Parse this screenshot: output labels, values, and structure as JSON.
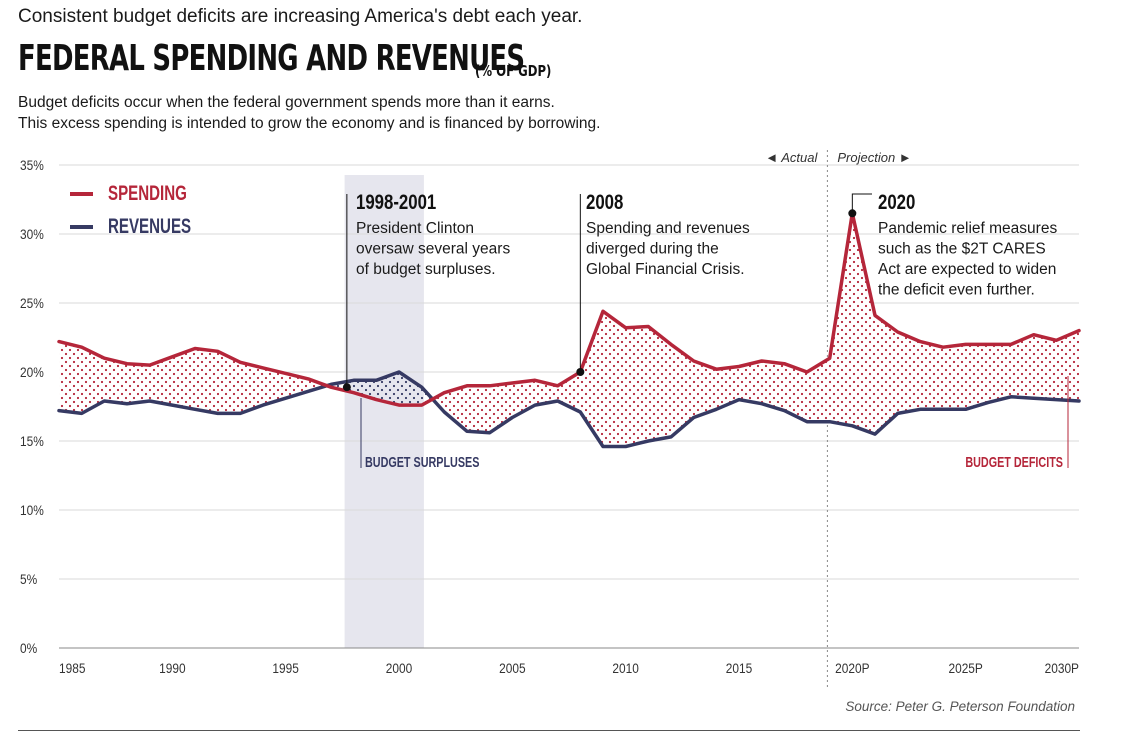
{
  "header": {
    "kicker": "Consistent budget deficits are increasing America's debt each year.",
    "title": "FEDERAL SPENDING AND REVENUES",
    "unit": "(% OF GDP)",
    "description_line1": "Budget deficits occur when the federal government spends more than it earns.",
    "description_line2": "This excess spending is intended to grow the economy and is financed by borrowing."
  },
  "colors": {
    "spending": "#b5263a",
    "revenues": "#363a63",
    "surplus_band": "#e6e6ee",
    "grid": "#d9d9d9"
  },
  "chart_data": {
    "type": "line",
    "x_start_year": 1985,
    "x_end_year": 2030,
    "x_tick_labels": [
      "1985",
      "1990",
      "1995",
      "2000",
      "2005",
      "2010",
      "2015",
      "2020P",
      "2025P",
      "2030P"
    ],
    "y_tick_labels": [
      "0%",
      "5%",
      "10%",
      "15%",
      "20%",
      "25%",
      "30%",
      "35%"
    ],
    "ylim": [
      0,
      35
    ],
    "grid": "horizontal",
    "legend_position": "top-left",
    "series": [
      {
        "name": "SPENDING",
        "color": "#b5263a",
        "x": [
          1985,
          1986,
          1987,
          1988,
          1989,
          1990,
          1991,
          1992,
          1993,
          1994,
          1995,
          1996,
          1997,
          1998,
          1999,
          2000,
          2001,
          2002,
          2003,
          2004,
          2005,
          2006,
          2007,
          2008,
          2009,
          2010,
          2011,
          2012,
          2013,
          2014,
          2015,
          2016,
          2017,
          2018,
          2019,
          2020,
          2021,
          2022,
          2023,
          2024,
          2025,
          2026,
          2027,
          2028,
          2029,
          2030
        ],
        "values": [
          22.2,
          21.8,
          21.0,
          20.6,
          20.5,
          21.1,
          21.7,
          21.5,
          20.7,
          20.3,
          19.9,
          19.5,
          18.9,
          18.5,
          18.0,
          17.6,
          17.6,
          18.5,
          19.0,
          19.0,
          19.2,
          19.4,
          19.0,
          20.0,
          24.4,
          23.2,
          23.3,
          22.0,
          20.8,
          20.2,
          20.4,
          20.8,
          20.6,
          20.0,
          21.0,
          31.5,
          24.1,
          22.9,
          22.2,
          21.8,
          22.0,
          22.0,
          22.0,
          22.7,
          22.3,
          23.0
        ]
      },
      {
        "name": "REVENUES",
        "color": "#363a63",
        "x": [
          1985,
          1986,
          1987,
          1988,
          1989,
          1990,
          1991,
          1992,
          1993,
          1994,
          1995,
          1996,
          1997,
          1998,
          1999,
          2000,
          2001,
          2002,
          2003,
          2004,
          2005,
          2006,
          2007,
          2008,
          2009,
          2010,
          2011,
          2012,
          2013,
          2014,
          2015,
          2016,
          2017,
          2018,
          2019,
          2020,
          2021,
          2022,
          2023,
          2024,
          2025,
          2026,
          2027,
          2028,
          2029,
          2030
        ],
        "values": [
          17.2,
          17.0,
          17.9,
          17.7,
          17.9,
          17.6,
          17.3,
          17.0,
          17.0,
          17.6,
          18.1,
          18.6,
          19.1,
          19.4,
          19.4,
          20.0,
          18.9,
          17.1,
          15.7,
          15.6,
          16.7,
          17.6,
          17.9,
          17.1,
          14.6,
          14.6,
          15.0,
          15.3,
          16.7,
          17.3,
          18.0,
          17.7,
          17.2,
          16.4,
          16.4,
          16.1,
          15.5,
          17.0,
          17.3,
          17.3,
          17.3,
          17.8,
          18.2,
          18.1,
          18.0,
          17.9
        ]
      }
    ],
    "actual_label": "Actual",
    "projection_label": "Projection",
    "surplus_label": "BUDGET SURPLUSES",
    "deficit_label": "BUDGET DEFICITS",
    "annotations": [
      {
        "year_label": "1998-2001",
        "lines": [
          "President Clinton",
          "oversaw several years",
          "of budget surpluses."
        ]
      },
      {
        "year_label": "2008",
        "lines": [
          "Spending and revenues",
          "diverged during the",
          "Global Financial Crisis."
        ]
      },
      {
        "year_label": "2020",
        "lines": [
          "Pandemic relief measures",
          "such as the $2T CARES",
          "Act are expected to widen",
          "the deficit even further."
        ]
      }
    ],
    "source": "Source: Peter G. Peterson Foundation"
  }
}
